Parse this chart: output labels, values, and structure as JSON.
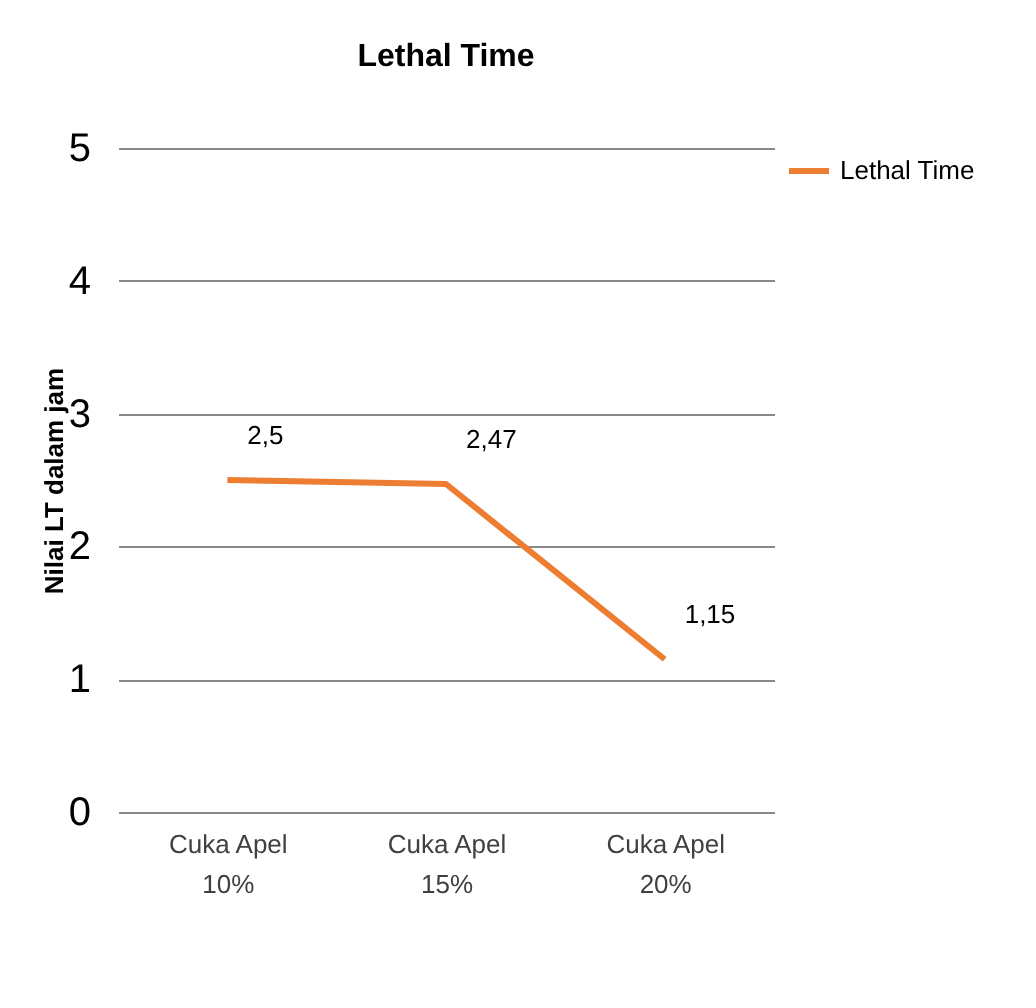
{
  "chart_data": {
    "type": "line",
    "title": "Lethal Time",
    "ylabel": "Nilai LT dalam jam",
    "categories": [
      "Cuka Apel 10%",
      "Cuka Apel 15%",
      "Cuka Apel 20%"
    ],
    "series": [
      {
        "name": "Lethal Time",
        "color": "#ed7d31",
        "values": [
          2.5,
          2.47,
          1.15
        ],
        "value_labels": [
          "2,5",
          "2,47",
          "1,15"
        ]
      }
    ],
    "ylim": [
      0,
      5
    ],
    "yticks": [
      0,
      1,
      2,
      3,
      4,
      5
    ],
    "grid": "y",
    "legend": "right",
    "marker": "none",
    "line_style": "solid"
  }
}
